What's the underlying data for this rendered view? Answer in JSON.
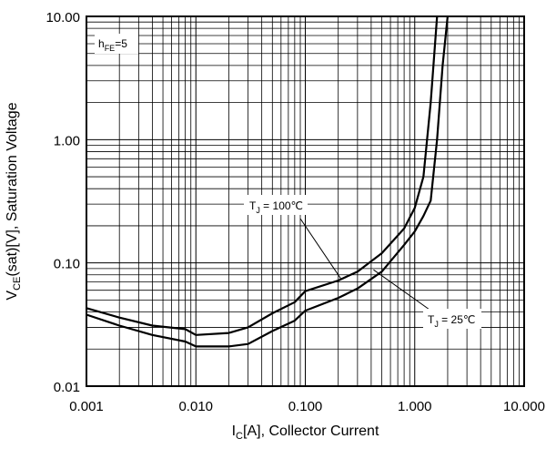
{
  "chart_data": {
    "type": "line",
    "x_scale": "log",
    "y_scale": "log",
    "xlim": [
      0.001,
      10
    ],
    "ylim": [
      0.01,
      10
    ],
    "grid": true,
    "x_ticks": [
      {
        "value": 0.001,
        "label": "0.001"
      },
      {
        "value": 0.01,
        "label": "0.010"
      },
      {
        "value": 0.1,
        "label": "0.100"
      },
      {
        "value": 1,
        "label": "1.000"
      },
      {
        "value": 10,
        "label": "10.000"
      }
    ],
    "y_ticks": [
      {
        "value": 0.01,
        "label": "0.01"
      },
      {
        "value": 0.1,
        "label": "0.10"
      },
      {
        "value": 1,
        "label": "1.00"
      },
      {
        "value": 10,
        "label": "10.00"
      }
    ],
    "xlabel": {
      "main": "I",
      "sub": "C",
      "rest": "[A], Collector Current"
    },
    "ylabel": {
      "main": "V",
      "sub": "CE",
      "rest": "(sat)[V], Saturation Voltage"
    },
    "condition_label": {
      "main": "h",
      "sub": "FE",
      "rest": "=5"
    },
    "series": [
      {
        "label": {
          "main": "T",
          "sub": "J",
          "rest": " = 100℃"
        },
        "color": "#000000",
        "points": [
          [
            0.001,
            0.043
          ],
          [
            0.002,
            0.036
          ],
          [
            0.004,
            0.031
          ],
          [
            0.008,
            0.029
          ],
          [
            0.01,
            0.026
          ],
          [
            0.02,
            0.027
          ],
          [
            0.03,
            0.03
          ],
          [
            0.05,
            0.039
          ],
          [
            0.08,
            0.048
          ],
          [
            0.1,
            0.059
          ],
          [
            0.2,
            0.072
          ],
          [
            0.3,
            0.085
          ],
          [
            0.5,
            0.12
          ],
          [
            0.8,
            0.19
          ],
          [
            1.0,
            0.28
          ],
          [
            1.2,
            0.5
          ],
          [
            1.4,
            2.0
          ],
          [
            1.6,
            10.0
          ]
        ]
      },
      {
        "label": {
          "main": "T",
          "sub": "J",
          "rest": " = 25℃"
        },
        "color": "#000000",
        "points": [
          [
            0.001,
            0.038
          ],
          [
            0.002,
            0.031
          ],
          [
            0.004,
            0.026
          ],
          [
            0.008,
            0.023
          ],
          [
            0.01,
            0.021
          ],
          [
            0.02,
            0.021
          ],
          [
            0.03,
            0.022
          ],
          [
            0.05,
            0.028
          ],
          [
            0.08,
            0.034
          ],
          [
            0.1,
            0.041
          ],
          [
            0.2,
            0.052
          ],
          [
            0.3,
            0.062
          ],
          [
            0.5,
            0.085
          ],
          [
            0.8,
            0.14
          ],
          [
            1.0,
            0.18
          ],
          [
            1.2,
            0.24
          ],
          [
            1.4,
            0.32
          ],
          [
            1.6,
            1.0
          ],
          [
            1.8,
            4.0
          ],
          [
            2.0,
            10.0
          ]
        ]
      }
    ],
    "annotations": [
      {
        "series_index": 0,
        "x": 0.21,
        "y": 0.075
      },
      {
        "series_index": 1,
        "x": 0.42,
        "y": 0.088
      }
    ]
  }
}
